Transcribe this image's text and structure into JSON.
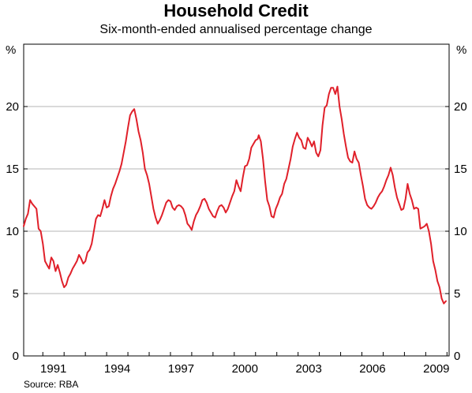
{
  "chart_data": {
    "type": "line",
    "title": "Household Credit",
    "subtitle": "Six-month-ended annualised percentage change",
    "ylabel_left": "%",
    "ylabel_right": "%",
    "source": "Source: RBA",
    "ylim": [
      0,
      25
    ],
    "xlim": [
      1989.1,
      2009.1
    ],
    "y_ticks": [
      0,
      5,
      10,
      15,
      20
    ],
    "x_ticks": [
      "1991",
      "1994",
      "1997",
      "2000",
      "2003",
      "2006",
      "2009"
    ],
    "grid": true,
    "line_color": "#e0202a",
    "series": [
      {
        "values": [
          [
            1989.1,
            10.4
          ],
          [
            1989.2,
            11.0
          ],
          [
            1989.3,
            11.4
          ],
          [
            1989.4,
            12.5
          ],
          [
            1989.5,
            12.2
          ],
          [
            1989.6,
            12.0
          ],
          [
            1989.7,
            11.8
          ],
          [
            1989.8,
            10.2
          ],
          [
            1989.9,
            10.0
          ],
          [
            1990.0,
            9.0
          ],
          [
            1990.1,
            7.6
          ],
          [
            1990.2,
            7.3
          ],
          [
            1990.3,
            7.0
          ],
          [
            1990.4,
            7.9
          ],
          [
            1990.5,
            7.6
          ],
          [
            1990.6,
            6.8
          ],
          [
            1990.7,
            7.3
          ],
          [
            1990.8,
            6.7
          ],
          [
            1990.9,
            6.0
          ],
          [
            1991.0,
            5.5
          ],
          [
            1991.1,
            5.7
          ],
          [
            1991.2,
            6.3
          ],
          [
            1991.3,
            6.6
          ],
          [
            1991.4,
            7.0
          ],
          [
            1991.5,
            7.3
          ],
          [
            1991.6,
            7.6
          ],
          [
            1991.7,
            8.1
          ],
          [
            1991.8,
            7.8
          ],
          [
            1991.9,
            7.4
          ],
          [
            1992.0,
            7.6
          ],
          [
            1992.1,
            8.3
          ],
          [
            1992.2,
            8.5
          ],
          [
            1992.3,
            9.0
          ],
          [
            1992.4,
            10.0
          ],
          [
            1992.5,
            11.0
          ],
          [
            1992.6,
            11.3
          ],
          [
            1992.7,
            11.2
          ],
          [
            1992.8,
            11.8
          ],
          [
            1992.9,
            12.5
          ],
          [
            1993.0,
            11.9
          ],
          [
            1993.1,
            12.0
          ],
          [
            1993.2,
            12.8
          ],
          [
            1993.3,
            13.4
          ],
          [
            1993.4,
            13.8
          ],
          [
            1993.5,
            14.3
          ],
          [
            1993.6,
            14.8
          ],
          [
            1993.7,
            15.4
          ],
          [
            1993.8,
            16.3
          ],
          [
            1993.9,
            17.2
          ],
          [
            1994.0,
            18.3
          ],
          [
            1994.1,
            19.3
          ],
          [
            1994.2,
            19.6
          ],
          [
            1994.3,
            19.8
          ],
          [
            1994.4,
            19.0
          ],
          [
            1994.5,
            18.0
          ],
          [
            1994.6,
            17.3
          ],
          [
            1994.7,
            16.3
          ],
          [
            1994.8,
            15.0
          ],
          [
            1994.9,
            14.5
          ],
          [
            1995.0,
            13.8
          ],
          [
            1995.1,
            12.8
          ],
          [
            1995.2,
            11.8
          ],
          [
            1995.3,
            11.1
          ],
          [
            1995.4,
            10.6
          ],
          [
            1995.5,
            10.9
          ],
          [
            1995.6,
            11.3
          ],
          [
            1995.7,
            11.8
          ],
          [
            1995.8,
            12.3
          ],
          [
            1995.9,
            12.5
          ],
          [
            1996.0,
            12.4
          ],
          [
            1996.1,
            11.9
          ],
          [
            1996.2,
            11.7
          ],
          [
            1996.3,
            12.0
          ],
          [
            1996.4,
            12.1
          ],
          [
            1996.5,
            12.0
          ],
          [
            1996.6,
            11.8
          ],
          [
            1996.7,
            11.3
          ],
          [
            1996.8,
            10.6
          ],
          [
            1996.9,
            10.4
          ],
          [
            1997.0,
            10.1
          ],
          [
            1997.1,
            10.8
          ],
          [
            1997.2,
            11.3
          ],
          [
            1997.3,
            11.6
          ],
          [
            1997.4,
            12.0
          ],
          [
            1997.5,
            12.5
          ],
          [
            1997.6,
            12.6
          ],
          [
            1997.7,
            12.3
          ],
          [
            1997.8,
            11.8
          ],
          [
            1997.9,
            11.5
          ],
          [
            1998.0,
            11.2
          ],
          [
            1998.1,
            11.1
          ],
          [
            1998.2,
            11.6
          ],
          [
            1998.3,
            12.0
          ],
          [
            1998.4,
            12.1
          ],
          [
            1998.5,
            11.9
          ],
          [
            1998.6,
            11.5
          ],
          [
            1998.7,
            11.8
          ],
          [
            1998.8,
            12.3
          ],
          [
            1998.9,
            12.8
          ],
          [
            1999.0,
            13.2
          ],
          [
            1999.1,
            14.1
          ],
          [
            1999.2,
            13.6
          ],
          [
            1999.3,
            13.2
          ],
          [
            1999.4,
            14.3
          ],
          [
            1999.5,
            15.2
          ],
          [
            1999.6,
            15.3
          ],
          [
            1999.7,
            15.8
          ],
          [
            1999.8,
            16.7
          ],
          [
            1999.9,
            17.0
          ],
          [
            2000.0,
            17.3
          ],
          [
            2000.1,
            17.4
          ],
          [
            2000.15,
            17.7
          ],
          [
            2000.25,
            17.2
          ],
          [
            2000.35,
            15.8
          ],
          [
            2000.45,
            14.0
          ],
          [
            2000.55,
            12.5
          ],
          [
            2000.65,
            12.0
          ],
          [
            2000.75,
            11.2
          ],
          [
            2000.85,
            11.1
          ],
          [
            2000.95,
            11.8
          ],
          [
            2001.05,
            12.2
          ],
          [
            2001.15,
            12.7
          ],
          [
            2001.25,
            13.0
          ],
          [
            2001.35,
            13.8
          ],
          [
            2001.45,
            14.2
          ],
          [
            2001.55,
            15.0
          ],
          [
            2001.65,
            15.8
          ],
          [
            2001.75,
            16.8
          ],
          [
            2001.85,
            17.4
          ],
          [
            2001.95,
            17.9
          ],
          [
            2002.05,
            17.5
          ],
          [
            2002.15,
            17.3
          ],
          [
            2002.25,
            16.7
          ],
          [
            2002.35,
            16.6
          ],
          [
            2002.45,
            17.5
          ],
          [
            2002.55,
            17.2
          ],
          [
            2002.65,
            16.8
          ],
          [
            2002.75,
            17.2
          ],
          [
            2002.85,
            16.3
          ],
          [
            2002.95,
            16.0
          ],
          [
            2003.05,
            16.5
          ],
          [
            2003.15,
            18.5
          ],
          [
            2003.25,
            19.9
          ],
          [
            2003.35,
            20.1
          ],
          [
            2003.45,
            21.0
          ],
          [
            2003.55,
            21.5
          ],
          [
            2003.65,
            21.5
          ],
          [
            2003.75,
            21.0
          ],
          [
            2003.85,
            21.6
          ],
          [
            2003.95,
            20.0
          ],
          [
            2004.05,
            19.0
          ],
          [
            2004.15,
            17.8
          ],
          [
            2004.25,
            16.8
          ],
          [
            2004.35,
            15.9
          ],
          [
            2004.45,
            15.6
          ],
          [
            2004.55,
            15.5
          ],
          [
            2004.65,
            16.4
          ],
          [
            2004.75,
            15.8
          ],
          [
            2004.85,
            15.5
          ],
          [
            2004.95,
            14.5
          ],
          [
            2005.05,
            13.6
          ],
          [
            2005.15,
            12.6
          ],
          [
            2005.25,
            12.1
          ],
          [
            2005.35,
            11.9
          ],
          [
            2005.45,
            11.8
          ],
          [
            2005.55,
            12.0
          ],
          [
            2005.65,
            12.3
          ],
          [
            2005.75,
            12.7
          ],
          [
            2005.85,
            13.0
          ],
          [
            2005.95,
            13.2
          ],
          [
            2006.05,
            13.6
          ],
          [
            2006.15,
            14.1
          ],
          [
            2006.25,
            14.5
          ],
          [
            2006.35,
            15.1
          ],
          [
            2006.45,
            14.5
          ],
          [
            2006.55,
            13.5
          ],
          [
            2006.65,
            12.7
          ],
          [
            2006.75,
            12.2
          ],
          [
            2006.85,
            11.7
          ],
          [
            2006.95,
            11.8
          ],
          [
            2007.05,
            12.6
          ],
          [
            2007.15,
            13.8
          ],
          [
            2007.25,
            13.0
          ],
          [
            2007.35,
            12.5
          ],
          [
            2007.45,
            11.8
          ],
          [
            2007.55,
            11.9
          ],
          [
            2007.65,
            11.8
          ],
          [
            2007.75,
            10.2
          ],
          [
            2007.85,
            10.3
          ],
          [
            2007.95,
            10.4
          ],
          [
            2008.05,
            10.6
          ],
          [
            2008.15,
            10.0
          ],
          [
            2008.25,
            9.0
          ],
          [
            2008.35,
            7.6
          ],
          [
            2008.45,
            6.9
          ],
          [
            2008.55,
            6.0
          ],
          [
            2008.65,
            5.5
          ],
          [
            2008.75,
            4.6
          ],
          [
            2008.85,
            4.2
          ],
          [
            2008.95,
            4.4
          ]
        ]
      }
    ]
  }
}
